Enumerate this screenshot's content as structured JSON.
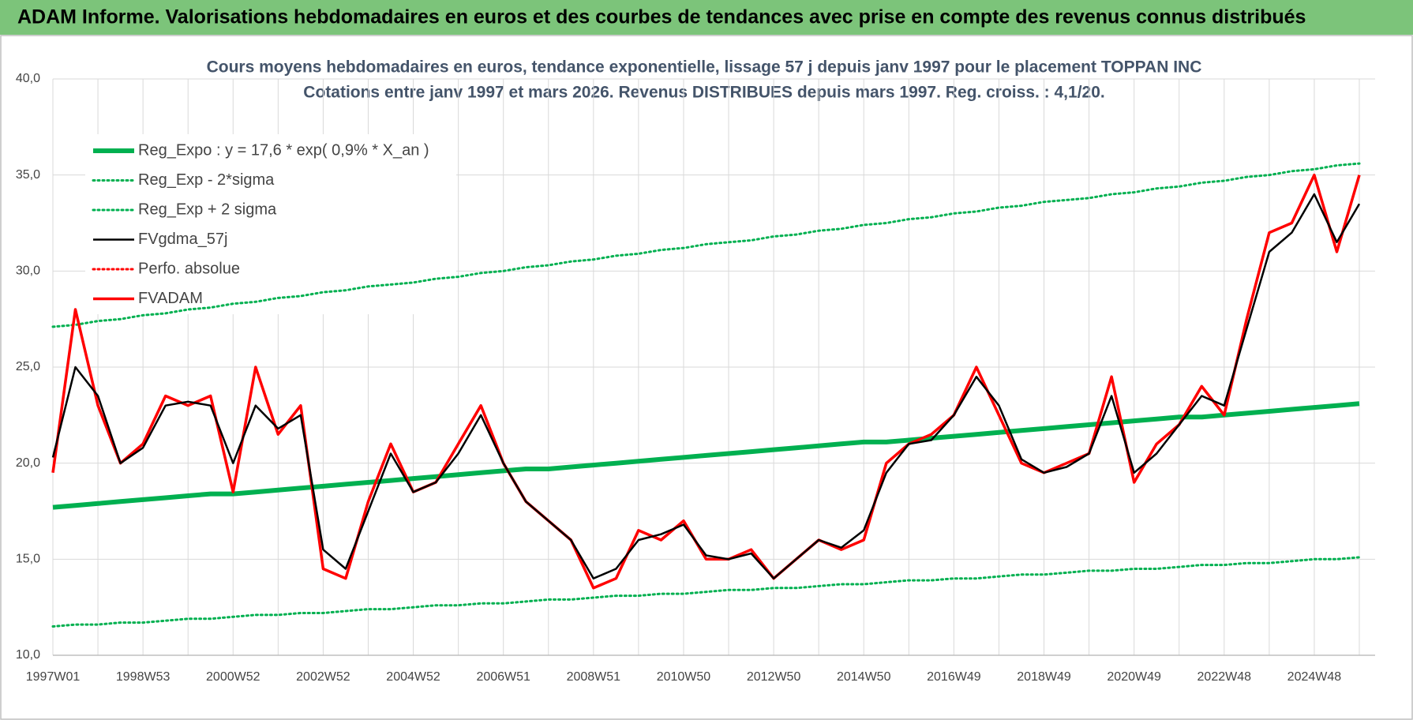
{
  "header": {
    "title": "ADAM Informe. Valorisations hebdomadaires en euros et des courbes de tendances avec prise en compte des revenus connus distribués"
  },
  "chart_data": {
    "type": "line",
    "title": "Cours moyens hebdomadaires en euros, tendance exponentielle, lissage 57 j depuis janv 1997  pour le placement TOPPAN INC",
    "subtitle": "Cotations entre janv 1997 et mars 2026. Revenus DISTRIBUES depuis mars 1997.  Reg. croiss. : 4,1/20.",
    "categories": [
      "1997W01",
      null,
      null,
      null,
      "1998W53",
      null,
      null,
      null,
      "2000W52",
      null,
      null,
      null,
      "2002W52",
      null,
      null,
      null,
      "2004W52",
      null,
      null,
      null,
      "2006W51",
      null,
      null,
      null,
      "2008W51",
      null,
      null,
      null,
      "2010W50",
      null,
      null,
      null,
      "2012W50",
      null,
      null,
      null,
      "2014W50",
      null,
      null,
      null,
      "2016W49",
      null,
      null,
      null,
      "2018W49",
      null,
      null,
      null,
      "2020W49",
      null,
      null,
      null,
      "2022W48",
      null,
      null,
      null,
      "2024W48",
      null,
      null
    ],
    "ylim": [
      10,
      40
    ],
    "yticks": [
      {
        "value": 10,
        "label": "10,0"
      },
      {
        "value": 15,
        "label": "15,0"
      },
      {
        "value": 20,
        "label": "20,0"
      },
      {
        "value": 25,
        "label": "25,0"
      },
      {
        "value": 30,
        "label": "30,0"
      },
      {
        "value": 35,
        "label": "35,0"
      },
      {
        "value": 40,
        "label": "40,0"
      }
    ],
    "grid": true,
    "legend": "top-left",
    "series": [
      {
        "name": "Reg_Expo : y = 17,6 * exp( 0,9% *  X_an )",
        "color": "#00b050",
        "style": "solid",
        "values": [
          17.7,
          17.8,
          17.9,
          18.0,
          18.1,
          18.2,
          18.3,
          18.4,
          18.4,
          18.5,
          18.6,
          18.7,
          18.8,
          18.9,
          19.0,
          19.1,
          19.2,
          19.3,
          19.4,
          19.5,
          19.6,
          19.7,
          19.7,
          19.8,
          19.9,
          20.0,
          20.1,
          20.2,
          20.3,
          20.4,
          20.5,
          20.6,
          20.7,
          20.8,
          20.9,
          21.0,
          21.1,
          21.1,
          21.2,
          21.3,
          21.4,
          21.5,
          21.6,
          21.7,
          21.8,
          21.9,
          22.0,
          22.1,
          22.2,
          22.3,
          22.4,
          22.4,
          22.5,
          22.6,
          22.7,
          22.8,
          22.9,
          23.0,
          23.1
        ]
      },
      {
        "name": "Reg_Exp - 2*sigma",
        "color": "#00b050",
        "style": "dotted",
        "values": [
          11.5,
          11.6,
          11.6,
          11.7,
          11.7,
          11.8,
          11.9,
          11.9,
          12.0,
          12.1,
          12.1,
          12.2,
          12.2,
          12.3,
          12.4,
          12.4,
          12.5,
          12.6,
          12.6,
          12.7,
          12.7,
          12.8,
          12.9,
          12.9,
          13.0,
          13.1,
          13.1,
          13.2,
          13.2,
          13.3,
          13.4,
          13.4,
          13.5,
          13.5,
          13.6,
          13.7,
          13.7,
          13.8,
          13.9,
          13.9,
          14.0,
          14.0,
          14.1,
          14.2,
          14.2,
          14.3,
          14.4,
          14.4,
          14.5,
          14.5,
          14.6,
          14.7,
          14.7,
          14.8,
          14.8,
          14.9,
          15.0,
          15.0,
          15.1
        ]
      },
      {
        "name": "Reg_Exp + 2 sigma",
        "color": "#00b050",
        "style": "dotted",
        "values": [
          27.1,
          27.2,
          27.4,
          27.5,
          27.7,
          27.8,
          28.0,
          28.1,
          28.3,
          28.4,
          28.6,
          28.7,
          28.9,
          29.0,
          29.2,
          29.3,
          29.4,
          29.6,
          29.7,
          29.9,
          30.0,
          30.2,
          30.3,
          30.5,
          30.6,
          30.8,
          30.9,
          31.1,
          31.2,
          31.4,
          31.5,
          31.6,
          31.8,
          31.9,
          32.1,
          32.2,
          32.4,
          32.5,
          32.7,
          32.8,
          33.0,
          33.1,
          33.3,
          33.4,
          33.6,
          33.7,
          33.8,
          34.0,
          34.1,
          34.3,
          34.4,
          34.6,
          34.7,
          34.9,
          35.0,
          35.2,
          35.3,
          35.5,
          35.6
        ]
      },
      {
        "name": "FVgdma_57j",
        "color": "#000000",
        "style": "solid",
        "values": [
          20.3,
          25,
          23.5,
          20,
          20.8,
          23,
          23.2,
          23,
          20,
          23,
          21.8,
          22.5,
          15.5,
          14.5,
          17.5,
          20.5,
          18.5,
          19,
          20.5,
          22.5,
          20,
          18,
          17,
          16,
          14,
          14.5,
          16,
          16.3,
          16.8,
          15.2,
          15,
          15.3,
          14,
          15,
          16,
          15.6,
          16.5,
          19.5,
          21,
          21.2,
          22.5,
          24.5,
          23,
          20.2,
          19.5,
          19.8,
          20.5,
          23.5,
          19.5,
          20.5,
          22,
          23.5,
          23,
          27,
          31,
          32,
          34,
          31.5,
          33.5
        ]
      },
      {
        "name": "Perfo. absolue",
        "color": "#ff0000",
        "style": "dotted",
        "values": [
          null,
          null,
          null,
          null,
          null,
          null,
          null,
          null,
          null,
          null,
          null,
          null,
          null,
          null,
          null,
          null,
          null,
          null,
          null,
          null,
          null,
          null,
          null,
          null,
          null,
          null,
          null,
          null,
          null,
          null,
          null,
          null,
          null,
          null,
          null,
          null,
          null,
          null,
          null,
          null,
          null,
          null,
          null,
          null,
          null,
          null,
          null,
          null,
          null,
          null,
          null,
          null,
          null,
          null,
          null,
          null,
          null,
          null,
          null
        ]
      },
      {
        "name": "FVADAM",
        "color": "#ff0000",
        "style": "solid",
        "values": [
          19.5,
          28,
          23,
          20,
          21,
          23.5,
          23,
          23.5,
          18.5,
          25,
          21.5,
          23,
          14.5,
          14,
          18,
          21,
          18.5,
          19,
          21,
          23,
          20,
          18,
          17,
          16,
          13.5,
          14,
          16.5,
          16,
          17,
          15,
          15,
          15.5,
          14,
          15,
          16,
          15.5,
          16,
          20,
          21,
          21.5,
          22.5,
          25,
          22.5,
          20,
          19.5,
          20,
          20.5,
          24.5,
          19,
          21,
          22,
          24,
          22.5,
          27.5,
          32,
          32.5,
          35,
          31,
          35
        ]
      }
    ]
  }
}
